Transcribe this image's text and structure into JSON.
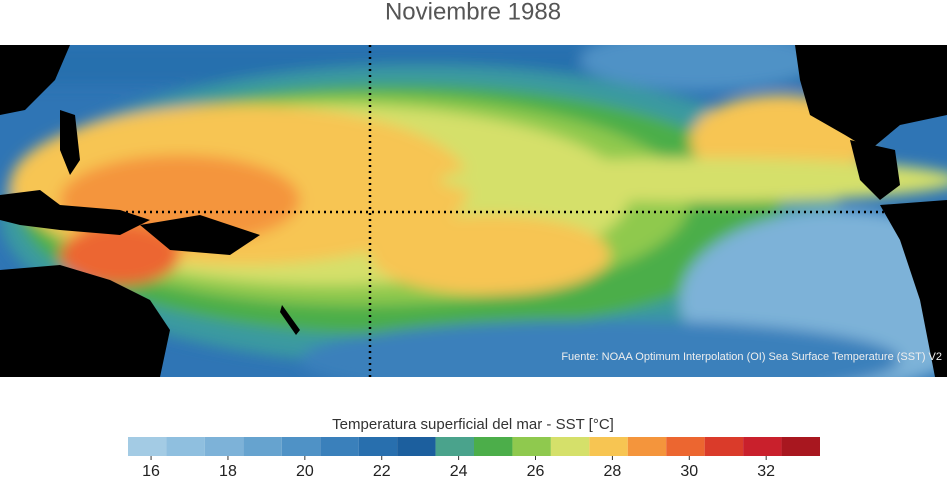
{
  "title": "Noviembre 1988",
  "source": "Fuente: NOAA Optimum Interpolation (OI) Sea Surface Temperature (SST) V2",
  "colorbar": {
    "title": "Temperatura superficial del mar - SST  [°C]",
    "bins": [
      15.4,
      16.4,
      17.4,
      18.4,
      19.4,
      20.4,
      21.4,
      22.4,
      23.4,
      24.4,
      25.4,
      26.4,
      27.4,
      28.4,
      29.4,
      30.4,
      31.4,
      32.4,
      33.4
    ],
    "colors": [
      "#a3cbe4",
      "#8fbfdf",
      "#7db2d8",
      "#66a3cf",
      "#4f92c6",
      "#3a80bb",
      "#286fae",
      "#1c5f9e",
      "#4aa38c",
      "#4cae4a",
      "#8fc94e",
      "#d5e06a",
      "#f7c552",
      "#f4953c",
      "#ec6630",
      "#da3b2a",
      "#c9202c",
      "#a8171f"
    ],
    "ticks": [
      16,
      18,
      20,
      22,
      24,
      26,
      28,
      30,
      32
    ]
  }
}
